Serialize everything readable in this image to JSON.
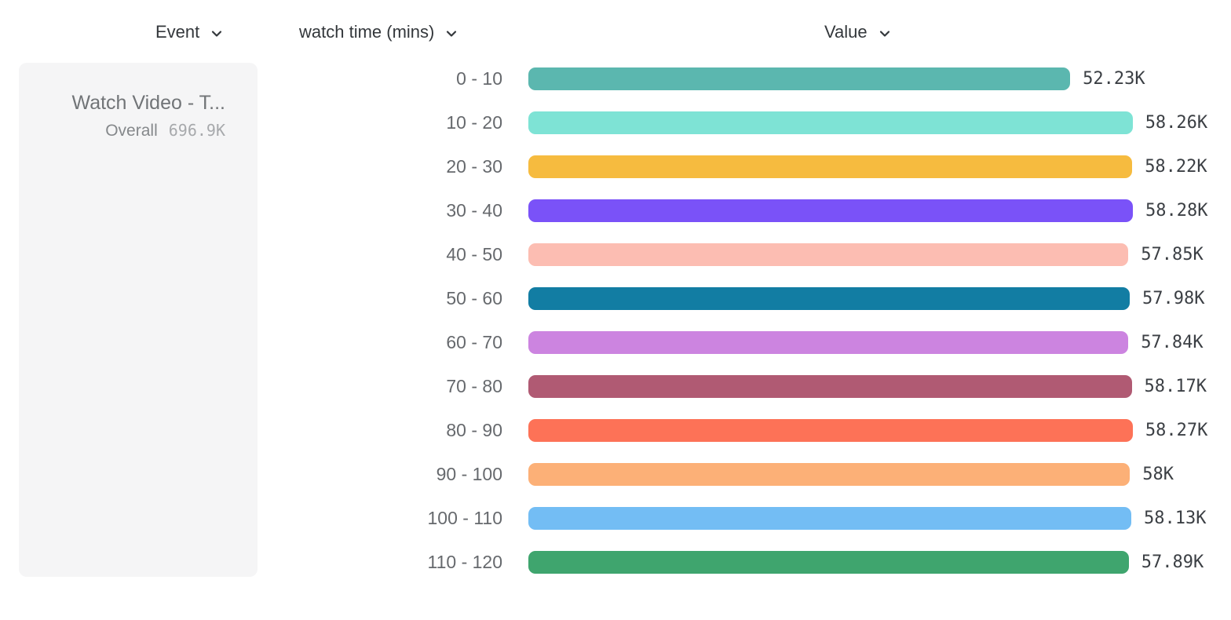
{
  "headers": {
    "event": {
      "label": "Event"
    },
    "breakdown": {
      "label": "watch time (mins)"
    },
    "value": {
      "label": "Value"
    }
  },
  "event_card": {
    "title": "Watch Video - T...",
    "overall_label": "Overall",
    "overall_value": "696.9K"
  },
  "icons": {
    "chevron_down": "⌄"
  },
  "chart_data": {
    "type": "bar",
    "orientation": "horizontal",
    "title": "",
    "xlabel": "Value",
    "ylabel": "watch time (mins)",
    "xlim": [
      0,
      58280
    ],
    "grid": false,
    "legend": false,
    "categories": [
      "0 - 10",
      "10 - 20",
      "20 - 30",
      "30 - 40",
      "40 - 50",
      "50 - 60",
      "60 - 70",
      "70 - 80",
      "80 - 90",
      "90 - 100",
      "100 - 110",
      "110 - 120"
    ],
    "values": [
      52230,
      58260,
      58220,
      58280,
      57850,
      57980,
      57840,
      58170,
      58270,
      58000,
      58130,
      57890
    ],
    "value_labels": [
      "52.23K",
      "58.26K",
      "58.22K",
      "58.28K",
      "57.85K",
      "57.98K",
      "57.84K",
      "58.17K",
      "58.27K",
      "58K",
      "58.13K",
      "57.89K"
    ],
    "bar_colors": [
      "#5bb7af",
      "#7ee3d5",
      "#f6bb3f",
      "#7a52f8",
      "#fcbdb2",
      "#127da3",
      "#cc84e0",
      "#b05a73",
      "#fd7257",
      "#fcb077",
      "#73bdf4",
      "#3fa56e"
    ]
  }
}
